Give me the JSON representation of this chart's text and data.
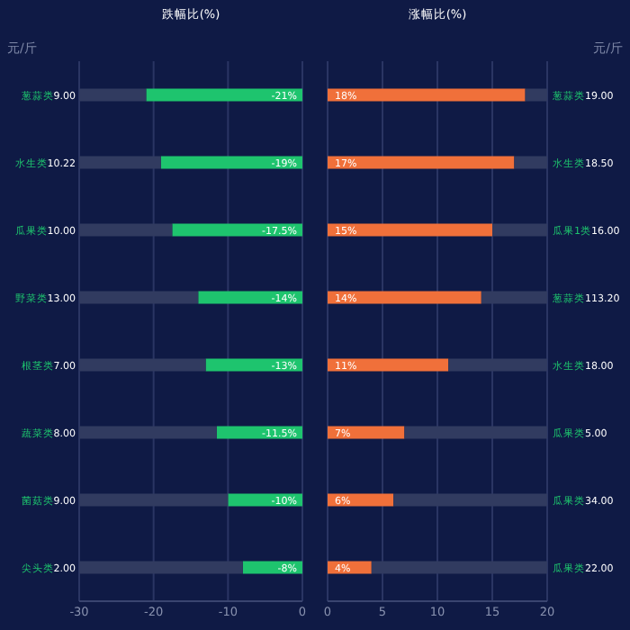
{
  "chart_data": [
    {
      "type": "bar",
      "orientation": "horizontal",
      "title": "跌幅比(%)",
      "ylabel": "元/斤",
      "categories": [
        "葱蒜类9.00",
        "水生类10.22",
        "瓜果类10.00",
        "野菜类13.00",
        "根茎类7.00",
        "蔬菜类8.00",
        "菌菇类9.00",
        "尖头类2.00"
      ],
      "stacked": true,
      "series": [
        {
          "color": "#1ec46e",
          "values": [
            -21,
            -19,
            -17.5,
            -14,
            -13,
            -11.5,
            -10,
            -8
          ],
          "value_labels": [
            "-21%",
            "-19%",
            "-17.5%",
            "-14%",
            "-13%",
            "-11.5%",
            "-10%",
            "-8%"
          ]
        },
        {
          "color": "#313b60",
          "values": [
            -9,
            -11,
            -12.5,
            -16,
            -17,
            -18.5,
            -20,
            -22
          ]
        }
      ],
      "xlim": [
        -30,
        0
      ],
      "xticks": [
        -30,
        -20,
        -10,
        0
      ],
      "grid": "x"
    },
    {
      "type": "bar",
      "orientation": "horizontal",
      "title": "涨幅比(%)",
      "ylabel": "元/斤",
      "categories": [
        "葱蒜类19.00",
        "水生类18.50",
        "瓜果1类16.00",
        "葱蒜类113.20",
        "水生类18.00",
        "瓜果类5.00",
        "瓜果类34.00",
        "瓜果类22.00"
      ],
      "stacked": true,
      "series": [
        {
          "color": "#f0703a",
          "values": [
            18,
            17,
            15,
            14,
            11,
            7,
            6,
            4
          ],
          "value_labels": [
            "18%",
            "17%",
            "15%",
            "14%",
            "11%",
            "7%",
            "6%",
            "4%"
          ]
        },
        {
          "color": "#313b60",
          "values": [
            2,
            3,
            5,
            6,
            9,
            13,
            14,
            16
          ]
        }
      ],
      "xlim": [
        0,
        20
      ],
      "xticks": [
        0,
        5,
        10,
        15,
        20
      ],
      "grid": "x"
    }
  ]
}
